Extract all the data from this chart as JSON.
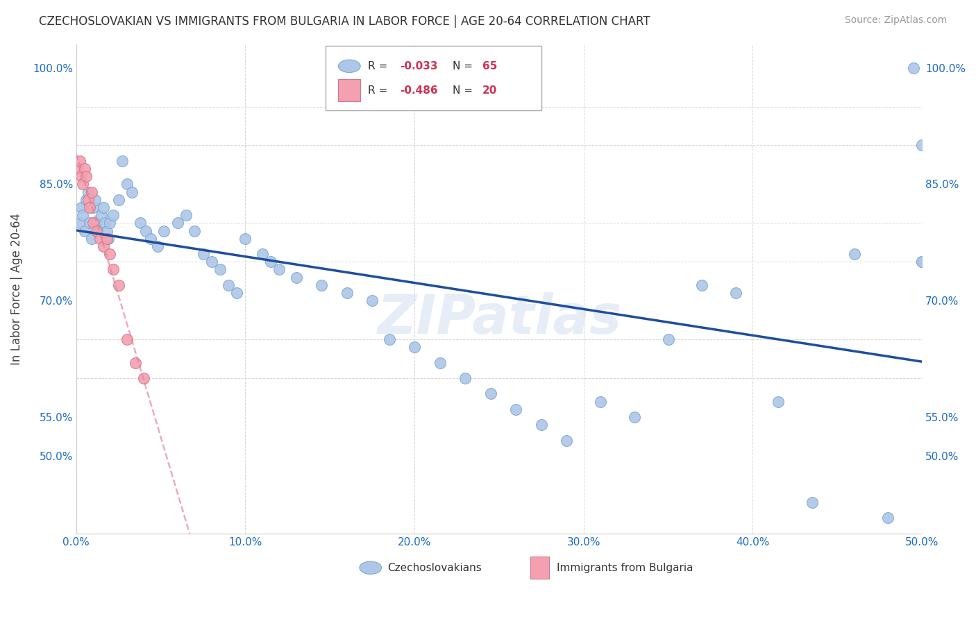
{
  "title": "CZECHOSLOVAKIAN VS IMMIGRANTS FROM BULGARIA IN LABOR FORCE | AGE 20-64 CORRELATION CHART",
  "source": "Source: ZipAtlas.com",
  "ylabel": "In Labor Force | Age 20-64",
  "xlim": [
    0.0,
    0.5
  ],
  "ylim": [
    0.4,
    1.03
  ],
  "xticks": [
    0.0,
    0.1,
    0.2,
    0.3,
    0.4,
    0.5
  ],
  "xticklabels": [
    "0.0%",
    "10.0%",
    "20.0%",
    "30.0%",
    "40.0%",
    "50.0%"
  ],
  "yticks_show": [
    0.5,
    0.55,
    0.7,
    0.85,
    1.0
  ],
  "ytick_labels": [
    "50.0%",
    "55.0%",
    "70.0%",
    "85.0%",
    "100.0%"
  ],
  "grid_yticks": [
    0.5,
    0.55,
    0.6,
    0.65,
    0.7,
    0.75,
    0.8,
    0.85,
    0.9,
    0.95,
    1.0
  ],
  "czech_color": "#aec6e8",
  "czech_edge": "#7aaad0",
  "bulg_color": "#f4a0b0",
  "bulg_edge": "#d07888",
  "czech_R": -0.033,
  "czech_N": 65,
  "bulg_R": -0.486,
  "bulg_N": 20,
  "trend_blue": "#1f4e9c",
  "trend_pink": "#e08098",
  "watermark": "ZIPatlas",
  "czech_x": [
    0.002,
    0.003,
    0.004,
    0.005,
    0.006,
    0.007,
    0.008,
    0.009,
    0.01,
    0.011,
    0.012,
    0.013,
    0.015,
    0.016,
    0.017,
    0.018,
    0.019,
    0.02,
    0.022,
    0.025,
    0.027,
    0.03,
    0.033,
    0.038,
    0.041,
    0.044,
    0.048,
    0.052,
    0.06,
    0.065,
    0.07,
    0.075,
    0.08,
    0.085,
    0.09,
    0.095,
    0.1,
    0.11,
    0.115,
    0.12,
    0.13,
    0.145,
    0.16,
    0.175,
    0.185,
    0.2,
    0.215,
    0.23,
    0.245,
    0.26,
    0.275,
    0.29,
    0.31,
    0.33,
    0.35,
    0.37,
    0.39,
    0.415,
    0.435,
    0.46,
    0.48,
    0.495,
    0.5,
    0.5,
    0.5
  ],
  "czech_y": [
    0.8,
    0.82,
    0.81,
    0.79,
    0.83,
    0.84,
    0.8,
    0.78,
    0.82,
    0.83,
    0.8,
    0.79,
    0.81,
    0.82,
    0.8,
    0.79,
    0.78,
    0.8,
    0.81,
    0.83,
    0.88,
    0.85,
    0.84,
    0.8,
    0.79,
    0.78,
    0.77,
    0.79,
    0.8,
    0.81,
    0.79,
    0.76,
    0.75,
    0.74,
    0.72,
    0.71,
    0.78,
    0.76,
    0.75,
    0.74,
    0.73,
    0.72,
    0.71,
    0.7,
    0.65,
    0.64,
    0.62,
    0.6,
    0.58,
    0.56,
    0.54,
    0.52,
    0.57,
    0.55,
    0.65,
    0.72,
    0.71,
    0.57,
    0.44,
    0.76,
    0.42,
    1.0,
    0.9,
    0.75,
    0.75
  ],
  "bulg_x": [
    0.001,
    0.002,
    0.003,
    0.004,
    0.005,
    0.006,
    0.007,
    0.008,
    0.009,
    0.01,
    0.012,
    0.014,
    0.016,
    0.018,
    0.02,
    0.022,
    0.025,
    0.03,
    0.035,
    0.04
  ],
  "bulg_y": [
    0.87,
    0.88,
    0.86,
    0.85,
    0.87,
    0.86,
    0.83,
    0.82,
    0.84,
    0.8,
    0.79,
    0.78,
    0.77,
    0.78,
    0.76,
    0.74,
    0.72,
    0.65,
    0.62,
    0.6
  ]
}
